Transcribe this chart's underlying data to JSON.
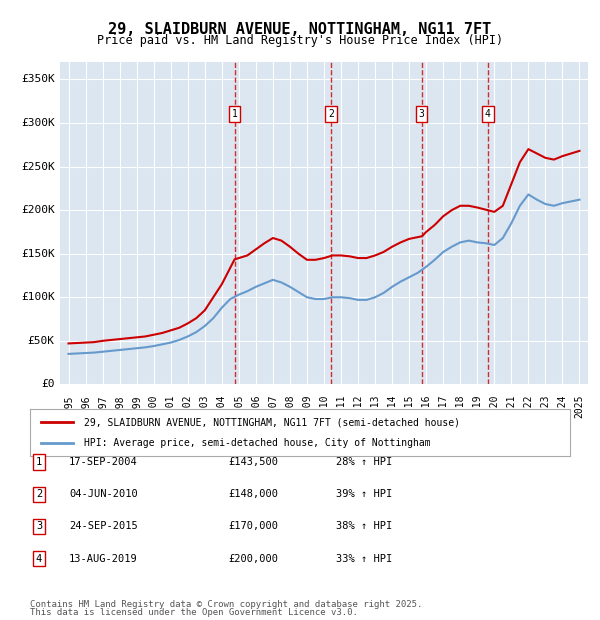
{
  "title": "29, SLAIDBURN AVENUE, NOTTINGHAM, NG11 7FT",
  "subtitle": "Price paid vs. HM Land Registry's House Price Index (HPI)",
  "legend_line1": "29, SLAIDBURN AVENUE, NOTTINGHAM, NG11 7FT (semi-detached house)",
  "legend_line2": "HPI: Average price, semi-detached house, City of Nottingham",
  "footer1": "Contains HM Land Registry data © Crown copyright and database right 2025.",
  "footer2": "This data is licensed under the Open Government Licence v3.0.",
  "ylabel": "",
  "transactions": [
    {
      "num": 1,
      "date": "17-SEP-2004",
      "price": 143500,
      "hpi_pct": "28%",
      "direction": "↑"
    },
    {
      "num": 2,
      "date": "04-JUN-2010",
      "price": 148000,
      "hpi_pct": "39%",
      "direction": "↑"
    },
    {
      "num": 3,
      "date": "24-SEP-2015",
      "price": 170000,
      "hpi_pct": "38%",
      "direction": "↑"
    },
    {
      "num": 4,
      "date": "13-AUG-2019",
      "price": 200000,
      "hpi_pct": "33%",
      "direction": "↑"
    }
  ],
  "red_color": "#cc0000",
  "blue_color": "#6699cc",
  "bg_color": "#dce6f1",
  "grid_color": "#ffffff",
  "dashed_color": "#cc0000",
  "ylim": [
    0,
    370000
  ],
  "yticks": [
    0,
    50000,
    100000,
    150000,
    200000,
    250000,
    300000,
    350000
  ],
  "ytick_labels": [
    "£0",
    "£50K",
    "£100K",
    "£150K",
    "£200K",
    "£250K",
    "£300K",
    "£350K"
  ],
  "red_x": [
    1995.0,
    1995.5,
    1996.0,
    1996.5,
    1997.0,
    1997.5,
    1998.0,
    1998.5,
    1999.0,
    1999.5,
    2000.0,
    2000.5,
    2001.0,
    2001.5,
    2002.0,
    2002.5,
    2003.0,
    2003.5,
    2004.0,
    2004.75,
    2005.0,
    2005.5,
    2006.0,
    2006.5,
    2007.0,
    2007.5,
    2008.0,
    2008.5,
    2009.0,
    2009.5,
    2010.0,
    2010.5,
    2011.0,
    2011.5,
    2012.0,
    2012.5,
    2013.0,
    2013.5,
    2014.0,
    2014.5,
    2015.0,
    2015.75,
    2016.0,
    2016.5,
    2017.0,
    2017.5,
    2018.0,
    2018.5,
    2019.0,
    2019.6,
    2020.0,
    2020.5,
    2021.0,
    2021.5,
    2022.0,
    2022.5,
    2023.0,
    2023.5,
    2024.0,
    2024.5,
    2025.0
  ],
  "red_y": [
    47000,
    47500,
    48000,
    48500,
    50000,
    51000,
    52000,
    53000,
    54000,
    55000,
    57000,
    59000,
    62000,
    65000,
    70000,
    76000,
    85000,
    100000,
    115000,
    143500,
    145000,
    148000,
    155000,
    162000,
    168000,
    165000,
    158000,
    150000,
    143000,
    143000,
    145000,
    148000,
    148000,
    147000,
    145000,
    145000,
    148000,
    152000,
    158000,
    163000,
    167000,
    170000,
    175000,
    183000,
    193000,
    200000,
    205000,
    205000,
    203000,
    200000,
    198000,
    205000,
    230000,
    255000,
    270000,
    265000,
    260000,
    258000,
    262000,
    265000,
    268000
  ],
  "blue_x": [
    1995.0,
    1995.5,
    1996.0,
    1996.5,
    1997.0,
    1997.5,
    1998.0,
    1998.5,
    1999.0,
    1999.5,
    2000.0,
    2000.5,
    2001.0,
    2001.5,
    2002.0,
    2002.5,
    2003.0,
    2003.5,
    2004.0,
    2004.5,
    2005.0,
    2005.5,
    2006.0,
    2006.5,
    2007.0,
    2007.5,
    2008.0,
    2008.5,
    2009.0,
    2009.5,
    2010.0,
    2010.5,
    2011.0,
    2011.5,
    2012.0,
    2012.5,
    2013.0,
    2013.5,
    2014.0,
    2014.5,
    2015.0,
    2015.5,
    2016.0,
    2016.5,
    2017.0,
    2017.5,
    2018.0,
    2018.5,
    2019.0,
    2019.5,
    2020.0,
    2020.5,
    2021.0,
    2021.5,
    2022.0,
    2022.5,
    2023.0,
    2023.5,
    2024.0,
    2024.5,
    2025.0
  ],
  "blue_y": [
    35000,
    35500,
    36000,
    36500,
    37500,
    38500,
    39500,
    40500,
    41500,
    42500,
    44000,
    46000,
    48000,
    51000,
    55000,
    60000,
    67000,
    76000,
    88000,
    98000,
    103000,
    107000,
    112000,
    116000,
    120000,
    117000,
    112000,
    106000,
    100000,
    98000,
    98000,
    100000,
    100000,
    99000,
    97000,
    97000,
    100000,
    105000,
    112000,
    118000,
    123000,
    128000,
    135000,
    143000,
    152000,
    158000,
    163000,
    165000,
    163000,
    162000,
    160000,
    168000,
    185000,
    205000,
    218000,
    212000,
    207000,
    205000,
    208000,
    210000,
    212000
  ],
  "transaction_years": [
    2004.75,
    2010.43,
    2015.73,
    2019.62
  ],
  "transaction_prices": [
    143500,
    148000,
    170000,
    200000
  ]
}
